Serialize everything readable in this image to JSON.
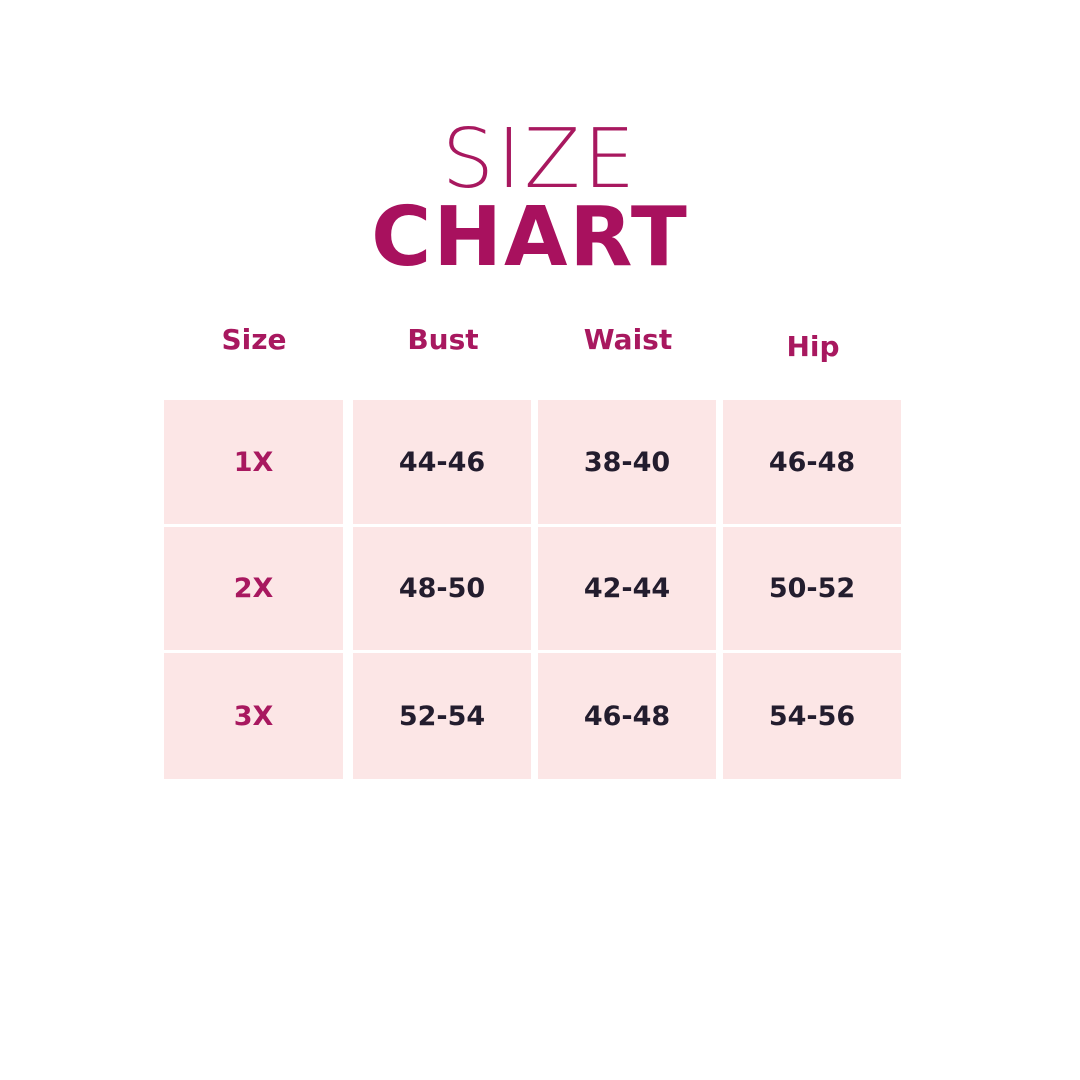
{
  "title": {
    "line1": "SIZE",
    "line2": "CHART"
  },
  "colors": {
    "accent": "#a8185f",
    "cell_bg": "#fce6e6",
    "value_text": "#231d2e"
  },
  "chart_data": {
    "type": "table",
    "columns": [
      "Size",
      "Bust",
      "Waist",
      "Hip"
    ],
    "rows": [
      [
        "1X",
        "44-46",
        "38-40",
        "46-48"
      ],
      [
        "2X",
        "48-50",
        "42-44",
        "50-52"
      ],
      [
        "3X",
        "52-54",
        "46-48",
        "54-56"
      ]
    ]
  }
}
